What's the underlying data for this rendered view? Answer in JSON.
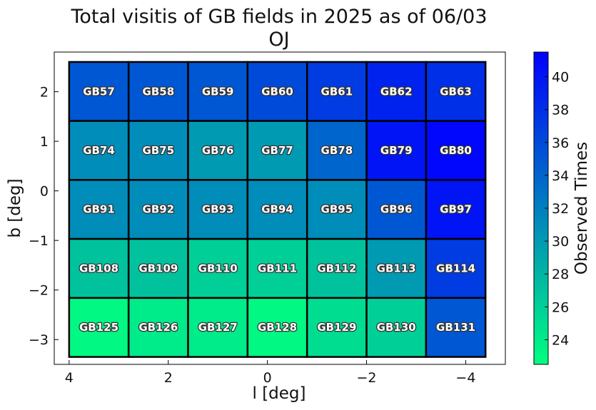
{
  "chart_data": {
    "type": "heatmap",
    "title": "Total visitis of GB fields in 2025 as of 06/03",
    "subtitle": "OJ",
    "xlabel": "l [deg]",
    "ylabel": "b [deg]",
    "xlim": [
      4.3,
      -4.8
    ],
    "ylim": [
      -3.5,
      2.8
    ],
    "x_ticks": [
      4,
      2,
      0,
      -2,
      -4
    ],
    "x_tick_labels": [
      "4",
      "2",
      "0",
      "−2",
      "−4"
    ],
    "y_ticks": [
      2,
      1,
      0,
      -1,
      -2,
      -3
    ],
    "y_tick_labels": [
      "2",
      "1",
      "0",
      "−1",
      "−2",
      "−3"
    ],
    "x_edges": [
      4.0,
      2.8,
      1.6,
      0.4,
      -0.8,
      -2.0,
      -3.2,
      -4.4
    ],
    "y_edges": [
      2.6,
      1.41,
      0.22,
      -0.97,
      -2.16,
      -3.35
    ],
    "fields": [
      [
        "GB57",
        "GB58",
        "GB59",
        "GB60",
        "GB61",
        "GB62",
        "GB63"
      ],
      [
        "GB74",
        "GB75",
        "GB76",
        "GB77",
        "GB78",
        "GB79",
        "GB80"
      ],
      [
        "GB91",
        "GB92",
        "GB93",
        "GB94",
        "GB95",
        "GB96",
        "GB97"
      ],
      [
        "GB108",
        "GB109",
        "GB110",
        "GB111",
        "GB112",
        "GB113",
        "GB114"
      ],
      [
        "GB125",
        "GB126",
        "GB127",
        "GB128",
        "GB129",
        "GB130",
        "GB131"
      ]
    ],
    "values": [
      [
        35,
        35,
        35,
        36,
        37,
        39,
        38
      ],
      [
        31,
        31,
        30,
        30,
        34,
        40,
        41
      ],
      [
        31,
        31,
        31,
        31,
        31,
        35,
        40
      ],
      [
        27,
        27,
        26,
        26,
        27,
        30,
        37
      ],
      [
        23,
        24,
        24,
        23,
        25,
        26,
        35
      ]
    ],
    "colorbar": {
      "label": "Observed Times",
      "vmin": 22.5,
      "vmax": 41.5,
      "ticks": [
        24,
        26,
        28,
        30,
        32,
        34,
        36,
        38,
        40
      ],
      "colormap": "winter",
      "color_low": "#00ff80",
      "color_high": "#0000ff"
    }
  }
}
